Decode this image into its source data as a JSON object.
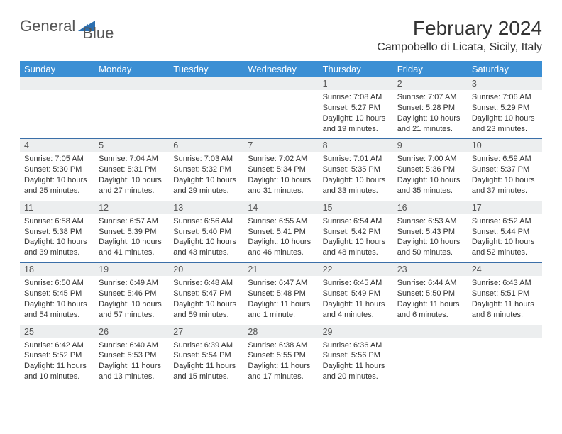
{
  "logo": {
    "text1": "General",
    "text2": "Blue"
  },
  "title": "February 2024",
  "location": "Campobello di Licata, Sicily, Italy",
  "colors": {
    "header_bg": "#3b8fd4",
    "header_text": "#ffffff",
    "daynum_bg": "#eceeef",
    "row_border": "#3b6fa8",
    "logo_gray": "#555555",
    "logo_blue": "#2c6fb0"
  },
  "weekdays": [
    "Sunday",
    "Monday",
    "Tuesday",
    "Wednesday",
    "Thursday",
    "Friday",
    "Saturday"
  ],
  "weeks": [
    [
      {
        "empty": true
      },
      {
        "empty": true
      },
      {
        "empty": true
      },
      {
        "empty": true
      },
      {
        "num": "1",
        "sunrise": "Sunrise: 7:08 AM",
        "sunset": "Sunset: 5:27 PM",
        "daylight": "Daylight: 10 hours and 19 minutes."
      },
      {
        "num": "2",
        "sunrise": "Sunrise: 7:07 AM",
        "sunset": "Sunset: 5:28 PM",
        "daylight": "Daylight: 10 hours and 21 minutes."
      },
      {
        "num": "3",
        "sunrise": "Sunrise: 7:06 AM",
        "sunset": "Sunset: 5:29 PM",
        "daylight": "Daylight: 10 hours and 23 minutes."
      }
    ],
    [
      {
        "num": "4",
        "sunrise": "Sunrise: 7:05 AM",
        "sunset": "Sunset: 5:30 PM",
        "daylight": "Daylight: 10 hours and 25 minutes."
      },
      {
        "num": "5",
        "sunrise": "Sunrise: 7:04 AM",
        "sunset": "Sunset: 5:31 PM",
        "daylight": "Daylight: 10 hours and 27 minutes."
      },
      {
        "num": "6",
        "sunrise": "Sunrise: 7:03 AM",
        "sunset": "Sunset: 5:32 PM",
        "daylight": "Daylight: 10 hours and 29 minutes."
      },
      {
        "num": "7",
        "sunrise": "Sunrise: 7:02 AM",
        "sunset": "Sunset: 5:34 PM",
        "daylight": "Daylight: 10 hours and 31 minutes."
      },
      {
        "num": "8",
        "sunrise": "Sunrise: 7:01 AM",
        "sunset": "Sunset: 5:35 PM",
        "daylight": "Daylight: 10 hours and 33 minutes."
      },
      {
        "num": "9",
        "sunrise": "Sunrise: 7:00 AM",
        "sunset": "Sunset: 5:36 PM",
        "daylight": "Daylight: 10 hours and 35 minutes."
      },
      {
        "num": "10",
        "sunrise": "Sunrise: 6:59 AM",
        "sunset": "Sunset: 5:37 PM",
        "daylight": "Daylight: 10 hours and 37 minutes."
      }
    ],
    [
      {
        "num": "11",
        "sunrise": "Sunrise: 6:58 AM",
        "sunset": "Sunset: 5:38 PM",
        "daylight": "Daylight: 10 hours and 39 minutes."
      },
      {
        "num": "12",
        "sunrise": "Sunrise: 6:57 AM",
        "sunset": "Sunset: 5:39 PM",
        "daylight": "Daylight: 10 hours and 41 minutes."
      },
      {
        "num": "13",
        "sunrise": "Sunrise: 6:56 AM",
        "sunset": "Sunset: 5:40 PM",
        "daylight": "Daylight: 10 hours and 43 minutes."
      },
      {
        "num": "14",
        "sunrise": "Sunrise: 6:55 AM",
        "sunset": "Sunset: 5:41 PM",
        "daylight": "Daylight: 10 hours and 46 minutes."
      },
      {
        "num": "15",
        "sunrise": "Sunrise: 6:54 AM",
        "sunset": "Sunset: 5:42 PM",
        "daylight": "Daylight: 10 hours and 48 minutes."
      },
      {
        "num": "16",
        "sunrise": "Sunrise: 6:53 AM",
        "sunset": "Sunset: 5:43 PM",
        "daylight": "Daylight: 10 hours and 50 minutes."
      },
      {
        "num": "17",
        "sunrise": "Sunrise: 6:52 AM",
        "sunset": "Sunset: 5:44 PM",
        "daylight": "Daylight: 10 hours and 52 minutes."
      }
    ],
    [
      {
        "num": "18",
        "sunrise": "Sunrise: 6:50 AM",
        "sunset": "Sunset: 5:45 PM",
        "daylight": "Daylight: 10 hours and 54 minutes."
      },
      {
        "num": "19",
        "sunrise": "Sunrise: 6:49 AM",
        "sunset": "Sunset: 5:46 PM",
        "daylight": "Daylight: 10 hours and 57 minutes."
      },
      {
        "num": "20",
        "sunrise": "Sunrise: 6:48 AM",
        "sunset": "Sunset: 5:47 PM",
        "daylight": "Daylight: 10 hours and 59 minutes."
      },
      {
        "num": "21",
        "sunrise": "Sunrise: 6:47 AM",
        "sunset": "Sunset: 5:48 PM",
        "daylight": "Daylight: 11 hours and 1 minute."
      },
      {
        "num": "22",
        "sunrise": "Sunrise: 6:45 AM",
        "sunset": "Sunset: 5:49 PM",
        "daylight": "Daylight: 11 hours and 4 minutes."
      },
      {
        "num": "23",
        "sunrise": "Sunrise: 6:44 AM",
        "sunset": "Sunset: 5:50 PM",
        "daylight": "Daylight: 11 hours and 6 minutes."
      },
      {
        "num": "24",
        "sunrise": "Sunrise: 6:43 AM",
        "sunset": "Sunset: 5:51 PM",
        "daylight": "Daylight: 11 hours and 8 minutes."
      }
    ],
    [
      {
        "num": "25",
        "sunrise": "Sunrise: 6:42 AM",
        "sunset": "Sunset: 5:52 PM",
        "daylight": "Daylight: 11 hours and 10 minutes."
      },
      {
        "num": "26",
        "sunrise": "Sunrise: 6:40 AM",
        "sunset": "Sunset: 5:53 PM",
        "daylight": "Daylight: 11 hours and 13 minutes."
      },
      {
        "num": "27",
        "sunrise": "Sunrise: 6:39 AM",
        "sunset": "Sunset: 5:54 PM",
        "daylight": "Daylight: 11 hours and 15 minutes."
      },
      {
        "num": "28",
        "sunrise": "Sunrise: 6:38 AM",
        "sunset": "Sunset: 5:55 PM",
        "daylight": "Daylight: 11 hours and 17 minutes."
      },
      {
        "num": "29",
        "sunrise": "Sunrise: 6:36 AM",
        "sunset": "Sunset: 5:56 PM",
        "daylight": "Daylight: 11 hours and 20 minutes."
      },
      {
        "empty": true
      },
      {
        "empty": true
      }
    ]
  ]
}
